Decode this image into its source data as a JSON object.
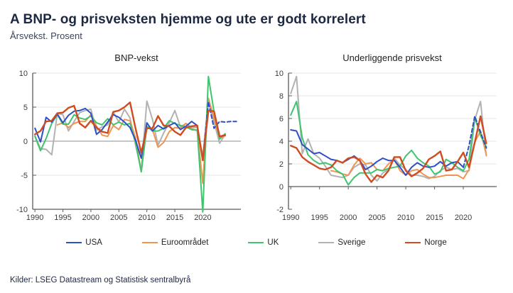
{
  "header": {
    "title": "A BNP- og prisveksten hjemme og ute er godt korrelert",
    "subtitle": "Årsvekst. Prosent"
  },
  "footer": {
    "sources": "Kilder: LSEG Datastream og Statistisk sentralbyrå"
  },
  "colors": {
    "usa": "#2d50c8",
    "euroomradet": "#f0954f",
    "uk": "#3fc56e",
    "sverige": "#b2b2b2",
    "norge": "#cf4b20",
    "title_navy": "#1c2742",
    "gridline": "#e4e4e4",
    "zero_line": "#8f8f8f",
    "axis": "#5a5a5a"
  },
  "legend": [
    {
      "label": "USA",
      "color": "#2d50c8"
    },
    {
      "label": "Euroområdet",
      "color": "#f0954f"
    },
    {
      "label": "UK",
      "color": "#3fc56e"
    },
    {
      "label": "Sverige",
      "color": "#b2b2b2"
    },
    {
      "label": "Norge",
      "color": "#cf4b20"
    }
  ],
  "chart_data": [
    {
      "type": "line",
      "title": "BNP-vekst",
      "xlabel": "",
      "ylabel": "",
      "xlim": [
        1989.6,
        2026.8
      ],
      "ylim": [
        -10,
        10
      ],
      "baseline": -10,
      "x_ticks": [
        1990,
        1995,
        2000,
        2005,
        2010,
        2015,
        2020
      ],
      "y_ticks": [
        -10,
        -5,
        0,
        5,
        10
      ],
      "grid": true,
      "years": [
        1990,
        1991,
        1992,
        1993,
        1994,
        1995,
        1996,
        1997,
        1998,
        1999,
        2000,
        2001,
        2002,
        2003,
        2004,
        2005,
        2006,
        2007,
        2008,
        2009,
        2010,
        2011,
        2012,
        2013,
        2014,
        2015,
        2016,
        2017,
        2018,
        2019,
        2020,
        2021,
        2022,
        2023,
        2024,
        2025,
        2026
      ],
      "series": [
        {
          "name": "Sverige",
          "color": "#b2b2b2",
          "width": 2,
          "values": [
            0.8,
            -1.1,
            -1.2,
            -2.0,
            4.1,
            3.9,
            1.5,
            2.9,
            4.2,
            4.5,
            4.7,
            1.6,
            2.1,
            2.4,
            4.3,
            2.8,
            4.7,
            3.4,
            -0.6,
            -4.3,
            5.9,
            3.2,
            -0.6,
            1.2,
            2.7,
            4.5,
            2.1,
            2.6,
            2.0,
            2.0,
            -2.2,
            5.9,
            2.8,
            -0.3,
            1.0,
            null,
            null
          ]
        },
        {
          "name": "Euroområdet",
          "color": "#f0954f",
          "width": 2,
          "values": [
            null,
            null,
            null,
            null,
            2.4,
            2.7,
            2.0,
            2.6,
            2.9,
            2.9,
            3.9,
            2.2,
            0.9,
            0.7,
            2.3,
            1.7,
            3.2,
            3.0,
            0.4,
            -4.5,
            2.1,
            1.7,
            -0.9,
            -0.2,
            1.4,
            2.0,
            1.9,
            2.6,
            1.8,
            1.6,
            -6.2,
            6.3,
            3.4,
            0.4,
            0.8,
            null,
            null
          ]
        },
        {
          "name": "UK",
          "color": "#3fc56e",
          "width": 2,
          "values": [
            0.7,
            -1.4,
            0.4,
            2.6,
            3.9,
            2.5,
            2.5,
            3.9,
            3.4,
            3.2,
            3.7,
            2.7,
            2.4,
            3.3,
            2.4,
            2.8,
            2.4,
            2.6,
            -0.2,
            -4.5,
            2.2,
            1.5,
            1.5,
            1.9,
            3.0,
            2.6,
            2.3,
            2.1,
            1.7,
            1.6,
            -10.4,
            9.5,
            4.3,
            0.3,
            1.1,
            null,
            null
          ]
        },
        {
          "name": "USA",
          "color": "#2d50c8",
          "width": 2,
          "dash_from": 2020,
          "values": [
            1.9,
            -0.1,
            3.5,
            2.8,
            4.0,
            2.7,
            3.8,
            4.4,
            4.5,
            4.8,
            4.1,
            1.0,
            1.7,
            2.8,
            3.9,
            3.5,
            2.8,
            2.0,
            0.1,
            -2.5,
            2.7,
            1.5,
            2.3,
            1.8,
            2.3,
            2.7,
            1.7,
            2.2,
            2.9,
            2.3,
            -2.8,
            5.8,
            1.9,
            2.9,
            2.8,
            2.9,
            2.9
          ]
        },
        {
          "name": "Norge",
          "color": "#cf4b20",
          "width": 2.4,
          "values": [
            1.0,
            1.5,
            2.9,
            3.0,
            4.1,
            4.2,
            4.9,
            5.2,
            2.6,
            2.0,
            3.0,
            2.0,
            1.4,
            1.2,
            4.3,
            4.5,
            5.0,
            5.7,
            1.8,
            -1.7,
            1.9,
            1.9,
            3.7,
            2.3,
            2.2,
            1.4,
            0.9,
            2.0,
            2.2,
            2.3,
            -2.8,
            4.5,
            4.4,
            0.7,
            0.9,
            null,
            null
          ]
        }
      ]
    },
    {
      "type": "line",
      "title": "Underliggende prisvekst",
      "xlabel": "",
      "ylabel": "",
      "xlim": [
        1989.6,
        2025.8
      ],
      "ylim": [
        -2,
        10
      ],
      "baseline": 0,
      "x_ticks": [
        1990,
        1995,
        2000,
        2005,
        2010,
        2015,
        2020
      ],
      "y_ticks": [
        -2,
        0,
        2,
        4,
        6,
        8,
        10
      ],
      "grid": true,
      "years": [
        1990,
        1991,
        1992,
        1993,
        1994,
        1995,
        1996,
        1997,
        1998,
        1999,
        2000,
        2001,
        2002,
        2003,
        2004,
        2005,
        2006,
        2007,
        2008,
        2009,
        2010,
        2011,
        2012,
        2013,
        2014,
        2015,
        2016,
        2017,
        2018,
        2019,
        2020,
        2021,
        2022,
        2023,
        2024
      ],
      "series": [
        {
          "name": "Sverige",
          "color": "#b2b2b2",
          "width": 2,
          "values": [
            8.2,
            9.7,
            2.9,
            4.2,
            2.9,
            2.5,
            1.8,
            1.0,
            0.9,
            0.8,
            1.0,
            1.7,
            2.0,
            1.9,
            1.0,
            0.5,
            1.2,
            1.5,
            2.5,
            1.9,
            1.5,
            1.0,
            1.0,
            0.9,
            0.7,
            0.9,
            1.4,
            1.7,
            1.5,
            1.6,
            1.3,
            1.4,
            5.9,
            7.5,
            2.7
          ]
        },
        {
          "name": "Euroområdet",
          "color": "#f0954f",
          "width": 2,
          "values": [
            null,
            null,
            null,
            null,
            null,
            null,
            null,
            1.4,
            1.3,
            1.1,
            1.0,
            1.9,
            2.5,
            2.0,
            2.1,
            1.5,
            1.4,
            2.0,
            2.4,
            1.4,
            1.0,
            1.4,
            1.5,
            1.1,
            0.8,
            0.8,
            0.9,
            1.0,
            1.0,
            1.0,
            0.7,
            1.5,
            3.9,
            4.9,
            2.8
          ]
        },
        {
          "name": "UK",
          "color": "#3fc56e",
          "width": 2,
          "values": [
            6.3,
            7.5,
            4.3,
            2.8,
            2.3,
            2.0,
            2.1,
            1.9,
            1.4,
            1.1,
            0.15,
            0.8,
            1.2,
            1.2,
            1.2,
            1.5,
            1.4,
            1.6,
            1.7,
            1.8,
            2.7,
            3.2,
            2.5,
            2.1,
            1.8,
            1.1,
            1.3,
            2.4,
            2.1,
            1.7,
            1.4,
            2.4,
            6.1,
            4.5,
            3.5
          ]
        },
        {
          "name": "USA",
          "color": "#2d50c8",
          "width": 2,
          "dash_from": 2020,
          "values": [
            5.0,
            4.9,
            3.7,
            3.3,
            2.9,
            3.0,
            2.7,
            2.4,
            2.3,
            2.1,
            2.4,
            2.7,
            2.3,
            1.5,
            1.8,
            2.2,
            2.5,
            2.3,
            2.3,
            1.7,
            1.0,
            1.7,
            2.1,
            1.8,
            1.7,
            1.8,
            2.2,
            1.8,
            2.1,
            2.2,
            1.7,
            3.6,
            6.2,
            4.8,
            3.4
          ]
        },
        {
          "name": "Norge",
          "color": "#cf4b20",
          "width": 2.4,
          "values": [
            3.6,
            3.4,
            2.6,
            2.2,
            1.9,
            1.6,
            1.5,
            1.7,
            2.3,
            2.1,
            2.5,
            2.6,
            2.3,
            1.1,
            0.4,
            1.0,
            0.8,
            1.4,
            2.6,
            2.6,
            1.4,
            0.9,
            1.2,
            1.6,
            2.4,
            2.7,
            3.1,
            1.4,
            1.5,
            2.2,
            3.0,
            1.7,
            3.9,
            6.2,
            3.8
          ]
        }
      ]
    }
  ]
}
